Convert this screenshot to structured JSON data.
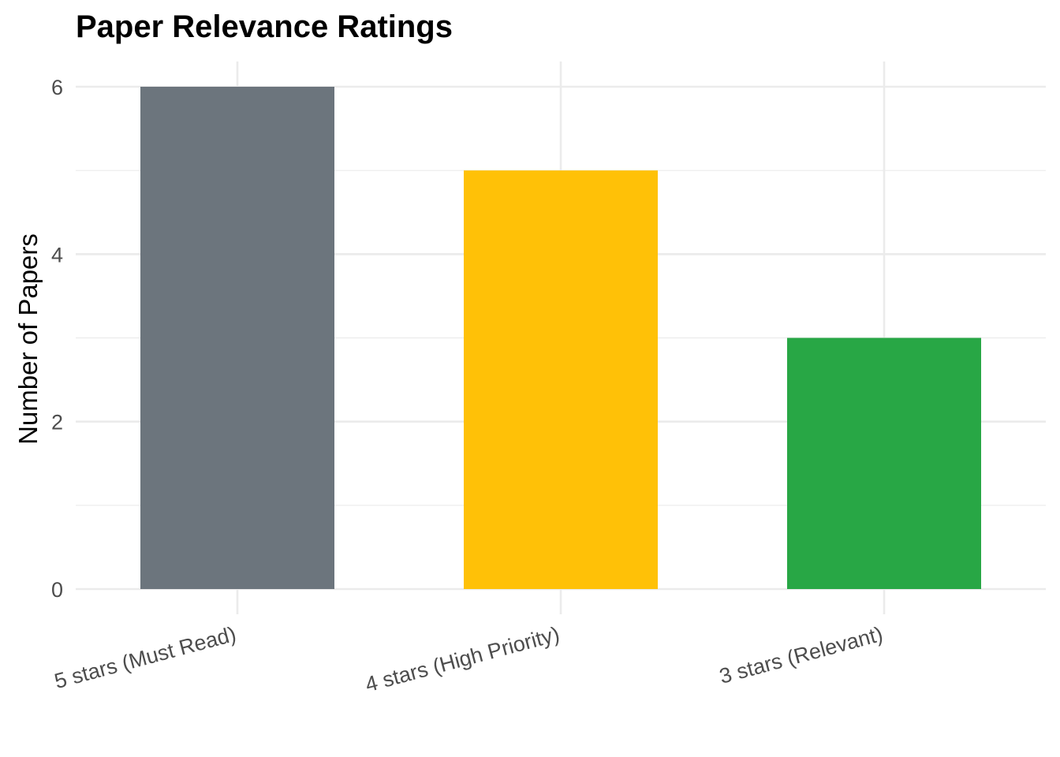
{
  "chart_data": {
    "type": "bar",
    "title": "Paper Relevance Ratings",
    "xlabel": "",
    "ylabel": "Number of Papers",
    "categories": [
      "5 stars (Must Read)",
      "4 stars (High Priority)",
      "3 stars (Relevant)"
    ],
    "values": [
      6,
      5,
      3
    ],
    "colors": [
      "#6c757d",
      "#ffc107",
      "#28a745"
    ],
    "ylim": [
      0,
      6.3
    ],
    "yticks": [
      "0",
      "2",
      "4",
      "6"
    ],
    "grid": true,
    "legend": "none"
  }
}
